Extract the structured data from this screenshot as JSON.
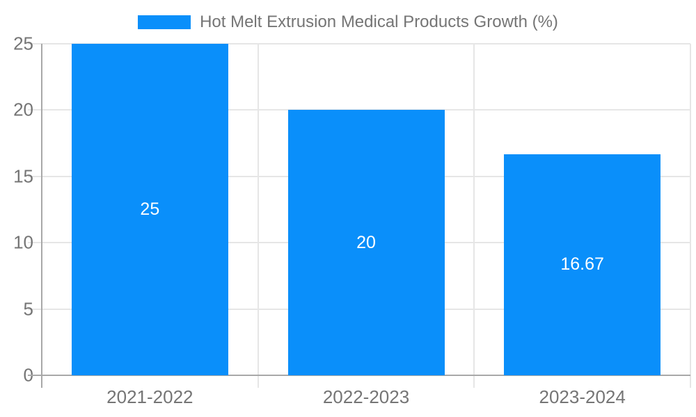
{
  "legend": {
    "label": "Hot Melt Extrusion Medical Products Growth (%)"
  },
  "colors": {
    "bar": "#0a8ffa",
    "axis": "#a8a8a8",
    "grid": "#e6e6e6",
    "text": "#757575",
    "bar_label": "#ffffff",
    "background": "#ffffff"
  },
  "chart_data": {
    "type": "bar",
    "title": "Hot Melt Extrusion Medical Products Growth (%)",
    "categories": [
      "2021-2022",
      "2022-2023",
      "2023-2024"
    ],
    "values": [
      25,
      20,
      16.67
    ],
    "bar_labels": [
      "25",
      "20",
      "16.67"
    ],
    "y_ticks": [
      0,
      5,
      10,
      15,
      20,
      25
    ],
    "ylim": [
      0,
      25
    ],
    "xlabel": "",
    "ylabel": "",
    "grid": true,
    "legend_position": "top-center",
    "bar_label_position": "middle-inside"
  }
}
